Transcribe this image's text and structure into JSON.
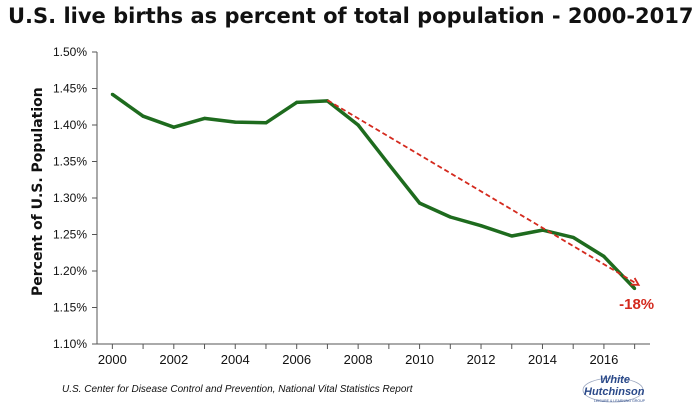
{
  "chart_data": {
    "type": "line",
    "title": "U.S. live births as percent of total population - 2000-2017",
    "ylabel": "Percent of U.S. Population",
    "xlabel": "",
    "x": [
      2000,
      2001,
      2002,
      2003,
      2004,
      2005,
      2006,
      2007,
      2008,
      2009,
      2010,
      2011,
      2012,
      2013,
      2014,
      2015,
      2016,
      2017
    ],
    "series": [
      {
        "color": "#1e6b1e",
        "values": [
          1.442,
          1.412,
          1.397,
          1.409,
          1.404,
          1.403,
          1.431,
          1.433,
          1.4,
          1.346,
          1.293,
          1.274,
          1.262,
          1.248,
          1.256,
          1.246,
          1.22,
          1.176
        ]
      }
    ],
    "trend": {
      "from": [
        2007,
        1.434
      ],
      "to": [
        2017,
        1.181
      ],
      "color": "#d42a1e",
      "style": "dashed",
      "label": "-18%"
    },
    "xlim": [
      1999.5,
      2017.5
    ],
    "xticks": [
      2000,
      2002,
      2004,
      2006,
      2008,
      2010,
      2012,
      2014,
      2016
    ],
    "ylim": [
      1.1,
      1.5
    ],
    "yticks": [
      1.1,
      1.15,
      1.2,
      1.25,
      1.3,
      1.35,
      1.4,
      1.45,
      1.5
    ],
    "ytick_labels": [
      "1.10%",
      "1.15%",
      "1.20%",
      "1.25%",
      "1.30%",
      "1.35%",
      "1.40%",
      "1.45%",
      "1.50%"
    ],
    "grid": false,
    "legend": "none",
    "source": "U.S.  Center for Disease Control and Prevention, National Vital Statistics Report"
  },
  "logo": {
    "line1": "White",
    "line2": "Hutchinson",
    "tagline": "LEISURE & LEARNING GROUP"
  }
}
